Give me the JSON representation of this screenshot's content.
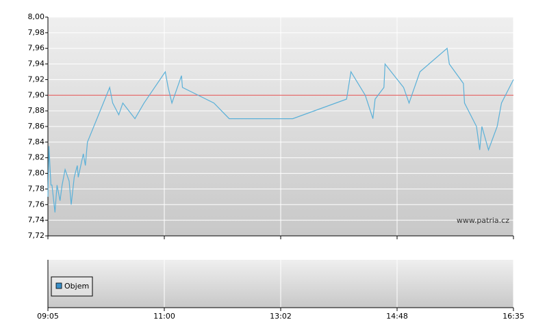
{
  "chart_data": {
    "type": "line",
    "x": [
      "09:05",
      "09:06",
      "09:08",
      "09:09",
      "09:12",
      "09:14",
      "09:17",
      "09:19",
      "09:22",
      "09:26",
      "09:28",
      "09:31",
      "09:34",
      "09:35",
      "09:40",
      "09:42",
      "09:44",
      "10:06",
      "10:09",
      "10:15",
      "10:19",
      "10:31",
      "10:40",
      "11:01",
      "11:04",
      "11:08",
      "11:18",
      "11:19",
      "11:52",
      "12:08",
      "13:13",
      "14:02",
      "14:06",
      "14:19",
      "14:26",
      "14:28",
      "14:36",
      "14:37",
      "14:54",
      "14:59",
      "15:09",
      "15:34",
      "15:36",
      "15:49",
      "15:50",
      "16:01",
      "16:04",
      "16:06",
      "16:12",
      "16:20",
      "16:24",
      "16:35"
    ],
    "values": [
      7.77,
      7.835,
      7.785,
      7.785,
      7.75,
      7.785,
      7.765,
      7.785,
      7.805,
      7.79,
      7.76,
      7.795,
      7.81,
      7.795,
      7.825,
      7.81,
      7.84,
      7.91,
      7.89,
      7.875,
      7.89,
      7.87,
      7.89,
      7.93,
      7.91,
      7.89,
      7.925,
      7.91,
      7.89,
      7.87,
      7.87,
      7.895,
      7.93,
      7.9,
      7.87,
      7.895,
      7.91,
      7.94,
      7.91,
      7.89,
      7.93,
      7.96,
      7.94,
      7.915,
      7.89,
      7.86,
      7.83,
      7.86,
      7.83,
      7.86,
      7.89,
      7.92
    ],
    "color": "#5ab0d8",
    "ref_line": 7.9,
    "ref_color": "#e04848",
    "xticks": [
      "09:05",
      "11:00",
      "13:02",
      "14:48",
      "16:35"
    ],
    "ylim": [
      7.72,
      8.0
    ],
    "yticks": [
      {
        "value": 7.72,
        "label": "7,72"
      },
      {
        "value": 7.74,
        "label": "7,74"
      },
      {
        "value": 7.76,
        "label": "7,76"
      },
      {
        "value": 7.78,
        "label": "7,78"
      },
      {
        "value": 7.8,
        "label": "7,80"
      },
      {
        "value": 7.82,
        "label": "7,82"
      },
      {
        "value": 7.84,
        "label": "7,84"
      },
      {
        "value": 7.86,
        "label": "7,86"
      },
      {
        "value": 7.88,
        "label": "7,88"
      },
      {
        "value": 7.9,
        "label": "7,90"
      },
      {
        "value": 7.92,
        "label": "7,92"
      },
      {
        "value": 7.94,
        "label": "7,94"
      },
      {
        "value": 7.96,
        "label": "7,96"
      },
      {
        "value": 7.98,
        "label": "7,98"
      },
      {
        "value": 8.0,
        "label": "8,00"
      }
    ],
    "grid": true,
    "watermark": "www.patria.cz",
    "volume_legend": "Objem",
    "volume_color": "#3a8fc8"
  }
}
